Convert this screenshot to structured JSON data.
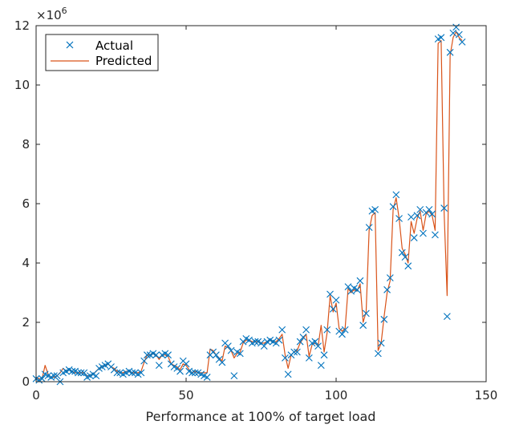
{
  "chart_data": {
    "type": "line",
    "title": "",
    "xlabel": "Performance at 100% of target load",
    "ylabel": "",
    "y_multiplier_label": "×10",
    "y_multiplier_exponent": "6",
    "xlim": [
      0,
      150
    ],
    "ylim": [
      0,
      12
    ],
    "y_scale_factor": 1000000,
    "xticks": [
      0,
      50,
      100,
      150
    ],
    "yticks": [
      0,
      2,
      4,
      6,
      8,
      10,
      12
    ],
    "grid": false,
    "legend_position": "top-left",
    "colors": {
      "actual": "#0072BD",
      "predicted": "#D95319",
      "axes": "#262626"
    },
    "series": [
      {
        "name": "Actual",
        "style": "marker-x",
        "values": [
          0.1,
          0.05,
          0.1,
          0.25,
          0.2,
          0.15,
          0.2,
          0.2,
          0.0,
          0.3,
          0.35,
          0.4,
          0.35,
          0.35,
          0.3,
          0.3,
          0.3,
          0.15,
          0.2,
          0.25,
          0.2,
          0.45,
          0.5,
          0.55,
          0.6,
          0.5,
          0.4,
          0.3,
          0.3,
          0.25,
          0.3,
          0.35,
          0.3,
          0.3,
          0.25,
          0.3,
          0.7,
          0.9,
          0.9,
          0.95,
          0.9,
          0.55,
          0.9,
          0.95,
          0.9,
          0.6,
          0.5,
          0.45,
          0.35,
          0.7,
          0.6,
          0.35,
          0.3,
          0.3,
          0.3,
          0.25,
          0.2,
          0.15,
          0.9,
          1.0,
          0.9,
          0.75,
          0.65,
          1.3,
          1.2,
          1.05,
          0.2,
          1.0,
          0.95,
          1.35,
          1.45,
          1.4,
          1.3,
          1.35,
          1.35,
          1.3,
          1.2,
          1.35,
          1.4,
          1.35,
          1.3,
          1.4,
          1.75,
          0.8,
          0.25,
          0.9,
          1.0,
          1.0,
          1.35,
          1.5,
          1.75,
          0.8,
          1.3,
          1.35,
          1.2,
          0.55,
          0.9,
          1.75,
          2.95,
          2.45,
          2.75,
          1.7,
          1.6,
          1.75,
          3.2,
          3.05,
          3.15,
          3.1,
          3.4,
          1.9,
          2.3,
          5.2,
          5.75,
          5.8,
          0.95,
          1.3,
          2.1,
          3.1,
          3.5,
          5.9,
          6.3,
          5.5,
          4.35,
          4.2,
          3.9,
          5.55,
          4.85,
          5.6,
          5.8,
          5.0,
          5.7,
          5.8,
          5.65,
          4.95,
          11.55,
          11.6,
          5.85,
          2.2,
          11.1,
          11.75,
          11.95,
          11.7,
          11.45
        ]
      },
      {
        "name": "Predicted",
        "style": "line",
        "values": [
          0.15,
          0.1,
          0.1,
          0.55,
          0.25,
          0.15,
          0.15,
          0.2,
          0.3,
          0.45,
          0.35,
          0.4,
          0.35,
          0.3,
          0.3,
          0.3,
          0.3,
          0.2,
          0.2,
          0.25,
          0.35,
          0.45,
          0.5,
          0.55,
          0.6,
          0.5,
          0.45,
          0.35,
          0.3,
          0.3,
          0.35,
          0.35,
          0.3,
          0.3,
          0.3,
          0.35,
          0.65,
          0.9,
          0.9,
          0.95,
          0.9,
          0.75,
          0.9,
          0.9,
          0.85,
          0.6,
          0.55,
          0.5,
          0.4,
          0.6,
          0.55,
          0.4,
          0.3,
          0.35,
          0.3,
          0.3,
          0.3,
          0.3,
          1.1,
          1.05,
          0.9,
          0.8,
          0.7,
          1.2,
          1.15,
          1.05,
          0.8,
          0.95,
          1.0,
          1.3,
          1.4,
          1.4,
          1.35,
          1.35,
          1.35,
          1.3,
          1.3,
          1.35,
          1.4,
          1.35,
          1.35,
          1.45,
          1.6,
          0.9,
          0.45,
          0.9,
          1.0,
          1.05,
          1.3,
          1.45,
          1.6,
          0.85,
          1.25,
          1.3,
          1.2,
          1.9,
          1.0,
          1.65,
          2.9,
          2.35,
          2.65,
          1.8,
          1.7,
          1.8,
          3.15,
          3.0,
          3.1,
          3.05,
          3.3,
          2.0,
          2.35,
          5.1,
          5.6,
          5.7,
          1.05,
          1.3,
          2.2,
          3.0,
          3.4,
          5.8,
          6.2,
          5.5,
          4.5,
          4.3,
          4.0,
          5.4,
          5.0,
          5.5,
          5.75,
          5.1,
          5.65,
          5.75,
          5.6,
          5.1,
          11.4,
          11.5,
          5.7,
          2.9,
          11.0,
          11.6,
          11.8,
          11.6,
          11.5
        ]
      }
    ]
  }
}
